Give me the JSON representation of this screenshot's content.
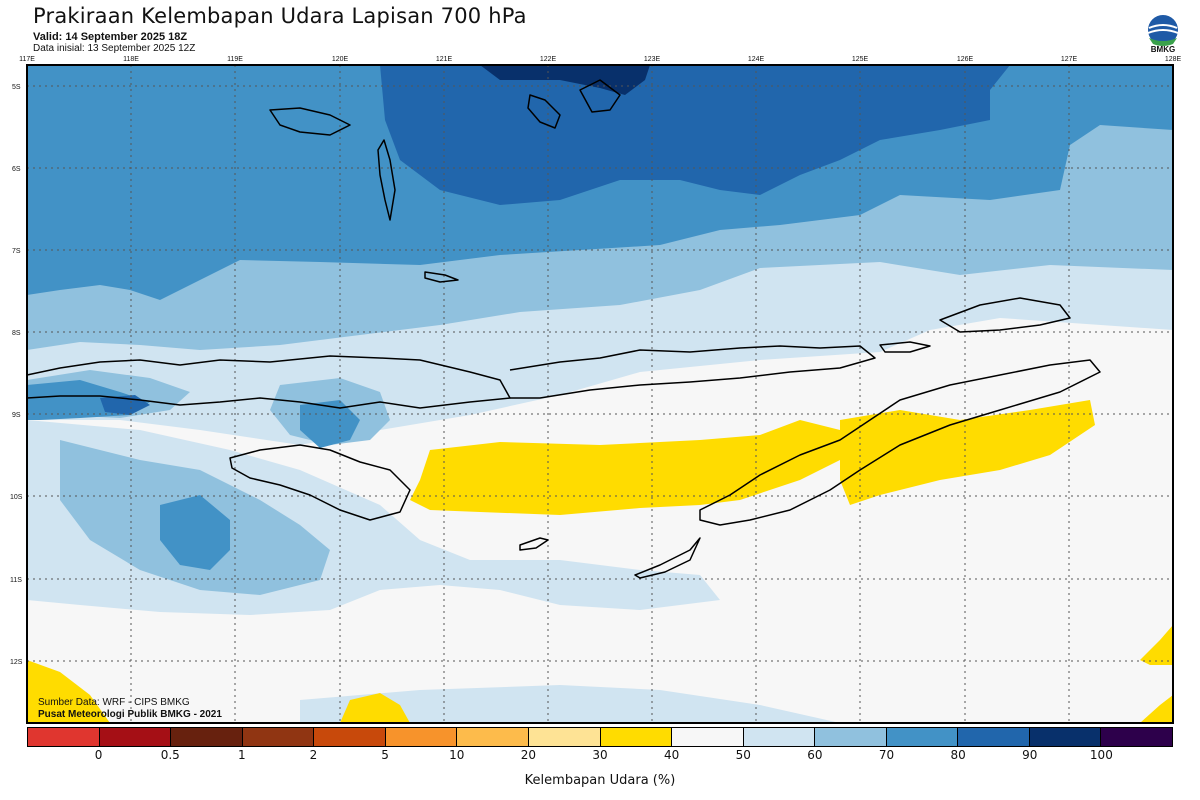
{
  "header": {
    "title": "Prakiraan Kelembapan Udara Lapisan 700 hPa",
    "valid": "Valid: 14 September 2025 18Z",
    "initial": "Data inisial: 13 September 2025 12Z"
  },
  "logo": {
    "icon": "bmkg-logo",
    "text": "BMKG"
  },
  "map": {
    "lon_labels": [
      "117E",
      "118E",
      "119E",
      "120E",
      "121E",
      "122E",
      "123E",
      "124E",
      "125E",
      "126E",
      "127E",
      "128E"
    ],
    "lat_labels": [
      "5S",
      "6S",
      "7S",
      "8S",
      "9S",
      "10S",
      "11S",
      "12S"
    ],
    "colors": {
      "very_dark_blue": "#16336b",
      "dark_blue": "#1f5aa6",
      "mid_blue": "#3f8dc4",
      "light_blue": "#90c1de",
      "pale_blue": "#d0e4f1",
      "near_white": "#f7f7f7",
      "yellow": "#ffdc00",
      "coast": "#000000"
    }
  },
  "source": {
    "line1": "Sumber Data: WRF - CIPS BMKG",
    "line2": "Pusat Meteorologi Publik BMKG - 2021"
  },
  "colorbar": {
    "colors": [
      "#e0362f",
      "#a50f15",
      "#67210e",
      "#903512",
      "#c8490b",
      "#f7932b",
      "#fdbb4b",
      "#fee395",
      "#ffdc00",
      "#f7f7f7",
      "#d0e4f1",
      "#90c1de",
      "#4292c6",
      "#2166ac",
      "#08306b",
      "#2d004b"
    ],
    "labels": [
      "0",
      "0.5",
      "1",
      "2",
      "5",
      "10",
      "20",
      "30",
      "40",
      "50",
      "60",
      "70",
      "80",
      "90",
      "100"
    ],
    "title": "Kelembapan Udara (%)"
  }
}
